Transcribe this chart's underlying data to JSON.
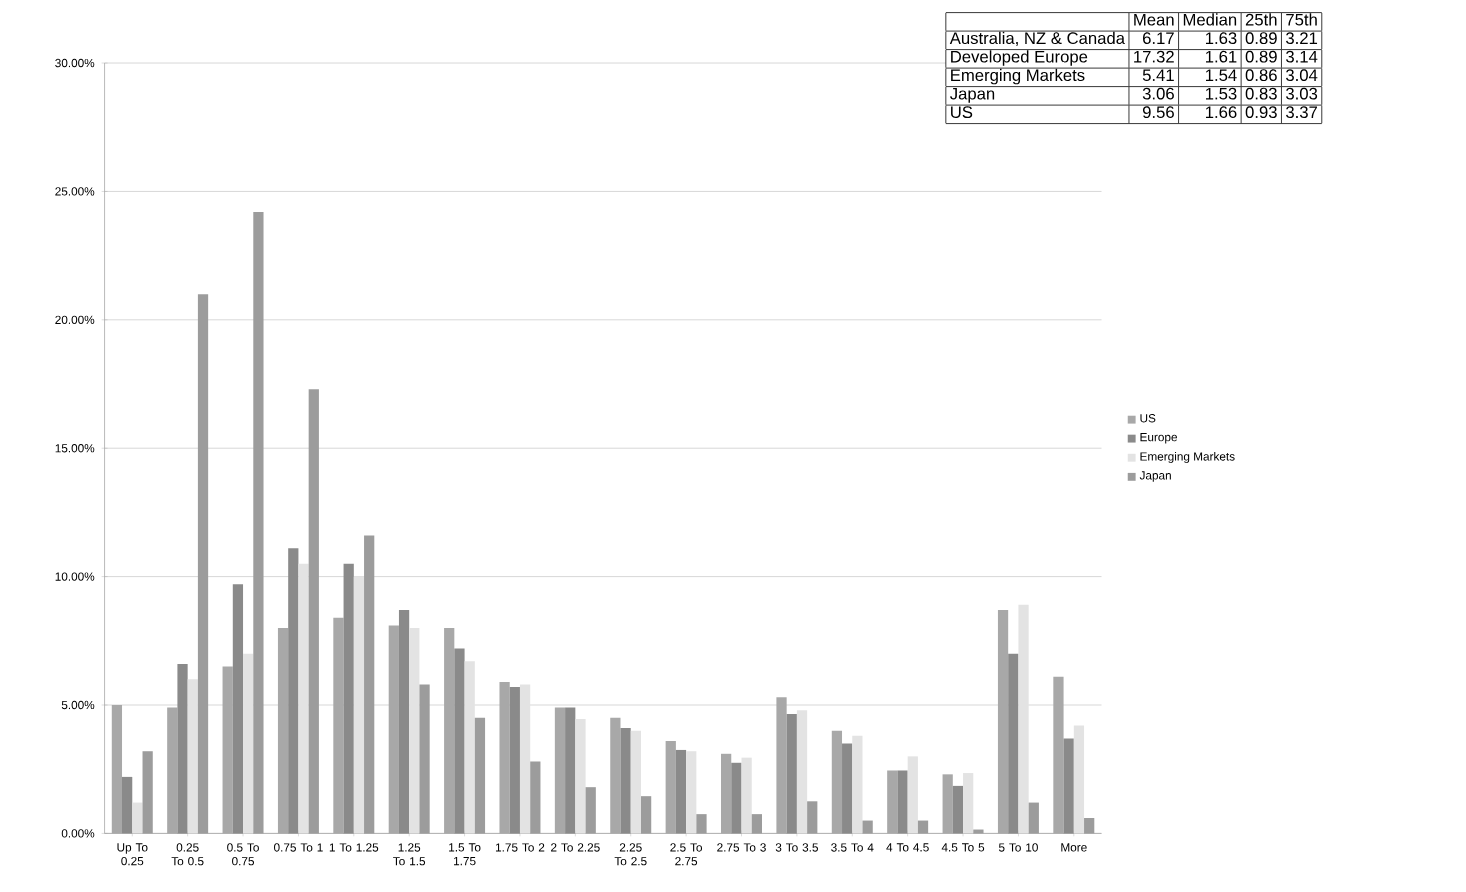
{
  "chart_data": {
    "type": "bar",
    "categories": [
      "Up To 0.25",
      "0.25 To 0.5",
      "0.5 To 0.75",
      "0.75 To 1",
      "1 To 1.25",
      "1.25 To 1.5",
      "1.5 To 1.75",
      "1.75 To 2",
      "2 To 2.25",
      "2.25 To 2.5",
      "2.5 To 2.75",
      "2.75 To 3",
      "3 To 3.5",
      "3.5 To 4",
      "4 To 4.5",
      "4.5 To 5",
      "5 To 10",
      "More"
    ],
    "series": [
      {
        "name": "US",
        "color": "#a8a8a8",
        "values": [
          5.0,
          4.9,
          6.5,
          8.0,
          8.4,
          8.1,
          8.0,
          5.9,
          4.9,
          4.5,
          3.6,
          3.1,
          5.3,
          4.0,
          2.45,
          2.3,
          8.7,
          6.1
        ]
      },
      {
        "name": "Europe",
        "color": "#8a8a8a",
        "values": [
          2.2,
          6.6,
          9.7,
          11.1,
          10.5,
          8.7,
          7.2,
          5.7,
          4.9,
          4.1,
          3.25,
          2.75,
          4.65,
          3.5,
          2.45,
          1.85,
          7.0,
          3.7
        ]
      },
      {
        "name": "Emerging Markets",
        "color": "#e3e3e3",
        "values": [
          1.2,
          6.0,
          7.0,
          10.5,
          10.0,
          8.0,
          6.7,
          5.8,
          4.45,
          4.0,
          3.2,
          2.95,
          4.8,
          3.8,
          3.0,
          2.35,
          8.9,
          4.2
        ]
      },
      {
        "name": "Japan",
        "color": "#9c9c9c",
        "values": [
          3.2,
          21.0,
          24.2,
          17.3,
          11.6,
          5.8,
          4.5,
          2.8,
          1.8,
          1.45,
          0.75,
          0.75,
          1.25,
          0.5,
          0.5,
          0.15,
          1.2,
          0.6
        ]
      }
    ],
    "ylim": [
      0,
      30
    ],
    "yticks": [
      {
        "value": 0,
        "label": "0.00%"
      },
      {
        "value": 5,
        "label": "5.00%"
      },
      {
        "value": 10,
        "label": "10.00%"
      },
      {
        "value": 15,
        "label": "15.00%"
      },
      {
        "value": 20,
        "label": "20.00%"
      },
      {
        "value": 25,
        "label": "25.00%"
      },
      {
        "value": 30,
        "label": "30.00%"
      }
    ],
    "grid": "y",
    "legend": "right",
    "annotations": [
      "Mean",
      "Median",
      "25th",
      "75th",
      "Australia, NZ & Canada",
      "6.17",
      "1.63",
      "0.89",
      "3.21",
      "Developed Europe",
      "17.32",
      "1.61",
      "0.89",
      "3.14",
      "Emerging Markets",
      "5.41",
      "1.54",
      "0.86",
      "3.04",
      "Japan",
      "3.06",
      "1.53",
      "0.83",
      "3.03",
      "US",
      "9.56",
      "1.66",
      "0.93",
      "3.37"
    ]
  }
}
